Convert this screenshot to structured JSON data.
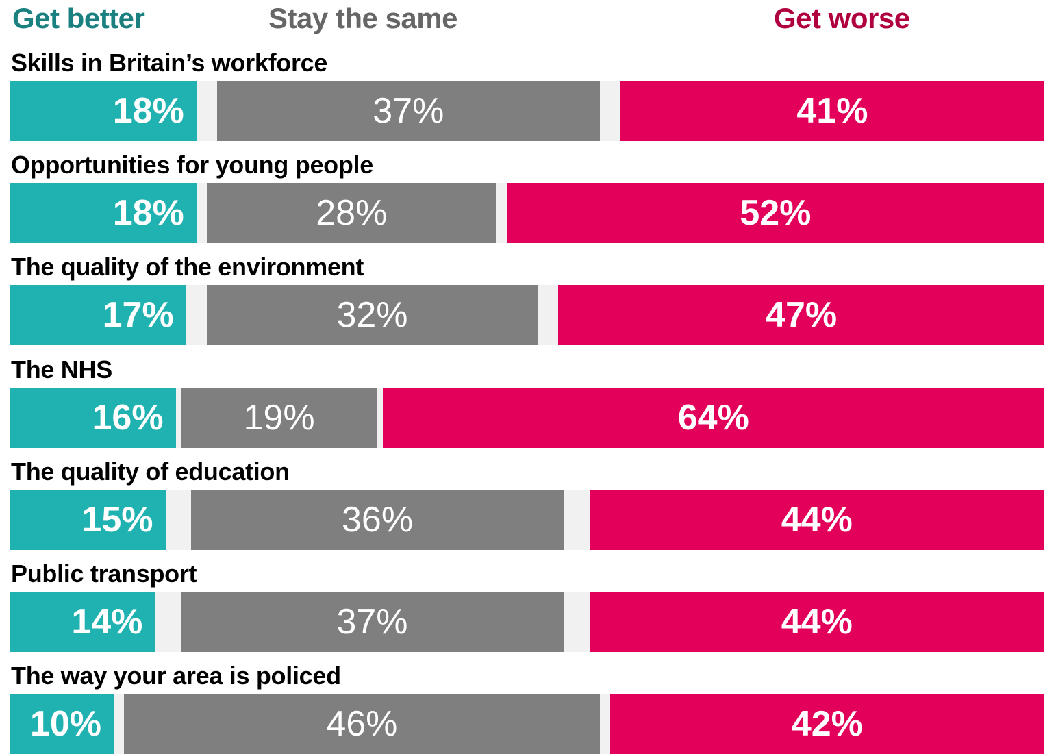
{
  "legend": {
    "better": "Get better",
    "same": "Stay the same",
    "worse": "Get worse"
  },
  "colors": {
    "better": "#20b2b0",
    "same": "#7f7f7f",
    "worse": "#e3005a",
    "better_text": "#1a8080",
    "same_text": "#666666",
    "worse_text": "#b0003f",
    "track": "#f1f1f1"
  },
  "chart_data": {
    "type": "bar",
    "orientation": "horizontal",
    "stacked": true,
    "categories": [
      "Skills in Britain’s workforce",
      "Opportunities for young people",
      "The quality of the environment",
      "The NHS",
      "The quality of education",
      "Public transport",
      "The way your area is policed"
    ],
    "series": [
      {
        "name": "Get better",
        "values": [
          18,
          18,
          17,
          16,
          15,
          14,
          10
        ]
      },
      {
        "name": "Stay the same",
        "values": [
          37,
          28,
          32,
          19,
          36,
          37,
          46
        ]
      },
      {
        "name": "Get worse",
        "values": [
          41,
          52,
          47,
          64,
          44,
          44,
          42
        ]
      }
    ],
    "value_suffix": "%",
    "legend_position": "top",
    "grid": false
  }
}
